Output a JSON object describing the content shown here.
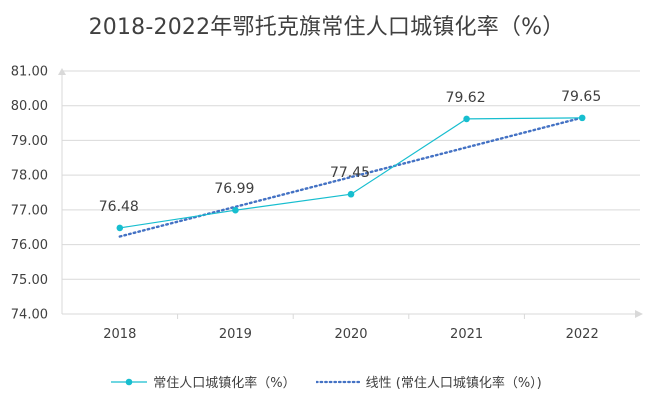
{
  "chart_data": {
    "type": "line",
    "title": "2018-2022年鄂托克旗常住人口城镇化率（%）",
    "categories": [
      "2018",
      "2019",
      "2020",
      "2021",
      "2022"
    ],
    "series": [
      {
        "name": "常住人口城镇化率（%）",
        "values": [
          76.48,
          76.99,
          77.45,
          79.62,
          79.65
        ],
        "color": "#17becf",
        "show_markers": true,
        "data_labels": true
      },
      {
        "name": "线性 (常住人口城镇化率（%）)",
        "type": "linear-trendline",
        "of_series": "常住人口城镇化率（%）",
        "values": [
          76.232,
          77.088,
          77.944,
          78.8,
          79.656
        ],
        "color": "#4472c4",
        "style": "dotted"
      }
    ],
    "ylim": [
      74.0,
      81.0
    ],
    "yticks": [
      "74.00",
      "75.00",
      "76.00",
      "77.00",
      "78.00",
      "79.00",
      "80.00",
      "81.00"
    ],
    "data_labels": [
      "76.48",
      "76.99",
      "77.45",
      "79.62",
      "79.65"
    ],
    "grid": true,
    "legend": "bottom",
    "xlabel": "",
    "ylabel": ""
  }
}
